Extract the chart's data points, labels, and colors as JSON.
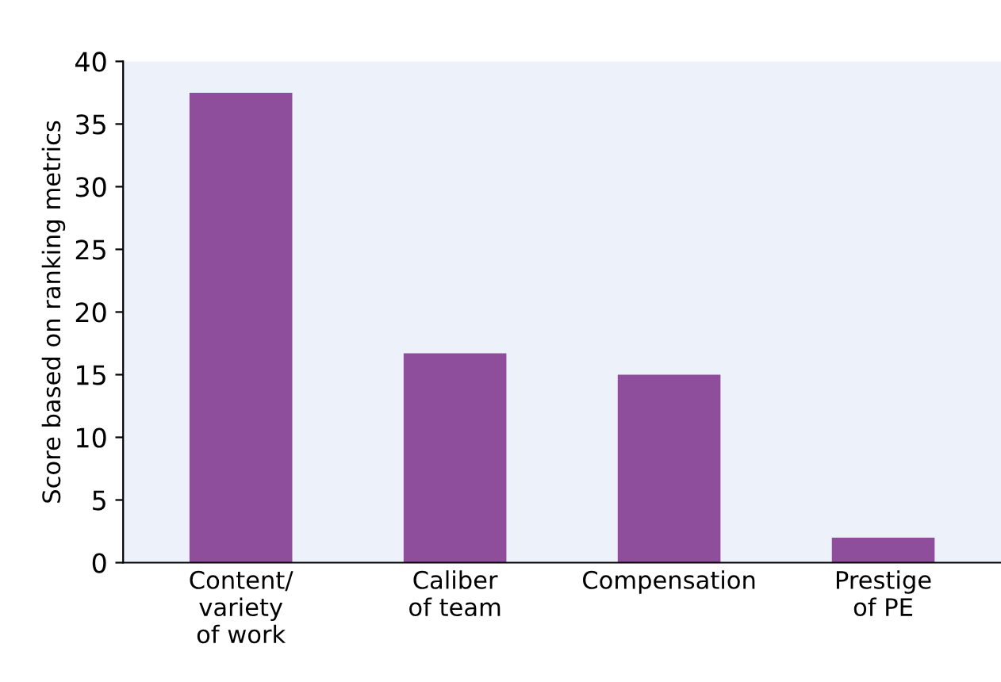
{
  "chart_data": {
    "type": "bar",
    "ylabel": "Score based on ranking metrics",
    "categories": [
      "Content/\nvariety\nof work",
      "Caliber\nof team",
      "Compensation",
      "Prestige\nof PE"
    ],
    "values": [
      37.5,
      16.7,
      15.0,
      2.0
    ],
    "color": "#8e4e9c",
    "ylim": [
      0,
      40
    ],
    "yticks": [
      0,
      5,
      10,
      15,
      20,
      25,
      30,
      35,
      40
    ],
    "grid": false,
    "legend": false
  }
}
